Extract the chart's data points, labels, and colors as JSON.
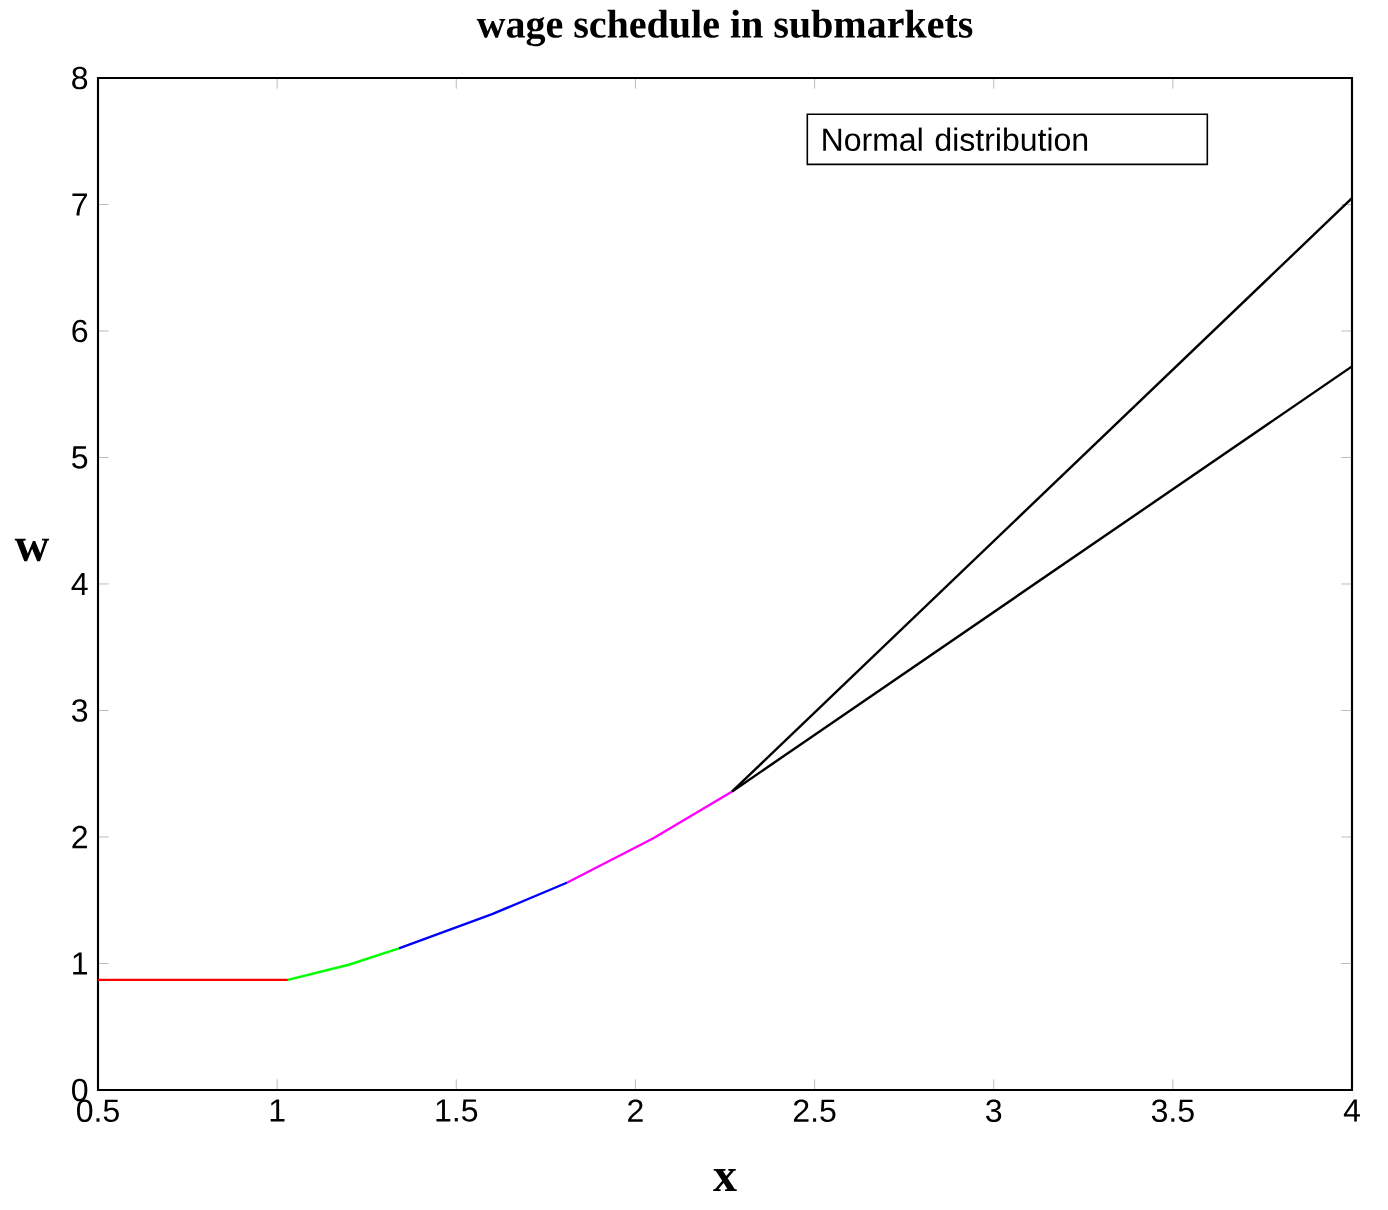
{
  "chart_data": {
    "type": "line",
    "title": "wage schedule in submarkets",
    "xlabel": "x",
    "ylabel": "w",
    "annotations": [
      "Normal distribution"
    ],
    "series": [
      {
        "color": "#ff0000",
        "x": [
          0.5,
          1.03
        ],
        "values": [
          0.87,
          0.87
        ]
      },
      {
        "color": "#00ff00",
        "x": [
          1.03,
          1.2,
          1.34
        ],
        "values": [
          0.87,
          0.99,
          1.12
        ]
      },
      {
        "color": "#0000ff",
        "x": [
          1.34,
          1.6,
          1.81
        ],
        "values": [
          1.12,
          1.39,
          1.64
        ]
      },
      {
        "color": "#ff00ff",
        "x": [
          1.81,
          2.05,
          2.27
        ],
        "values": [
          1.64,
          1.99,
          2.36
        ]
      },
      {
        "color": "#000000",
        "x": [
          2.27,
          4
        ],
        "values": [
          2.36,
          7.05
        ]
      },
      {
        "color": "#000000",
        "x": [
          2.27,
          4
        ],
        "values": [
          2.36,
          5.72
        ]
      }
    ],
    "xlim": [
      0.5,
      4
    ],
    "ylim": [
      0,
      8
    ],
    "xticks": [
      0.5,
      1,
      1.5,
      2,
      2.5,
      3,
      3.5,
      4
    ],
    "yticks": [
      0,
      1,
      2,
      3,
      4,
      5,
      6,
      7,
      8
    ],
    "marker": "none"
  }
}
